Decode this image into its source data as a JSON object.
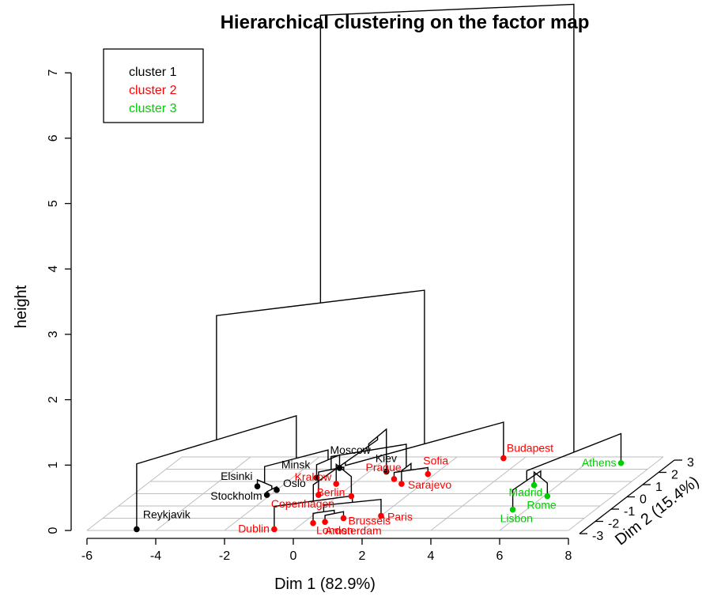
{
  "chart_data": {
    "type": "dendrogram-3d",
    "title": "Hierarchical clustering on the factor map",
    "xlabel": "Dim 1 (82.9%)",
    "ylabel": "Dim 2 (15.4%)",
    "zlabel": "height",
    "xlim": [
      -6,
      8
    ],
    "ylim": [
      -3,
      3
    ],
    "zlim": [
      0,
      7
    ],
    "x_ticks": [
      "-6",
      "-4",
      "-2",
      "0",
      "2",
      "4",
      "6",
      "8"
    ],
    "y_ticks": [
      "-3",
      "-2",
      "-1",
      "0",
      "1",
      "2",
      "3"
    ],
    "z_ticks": [
      "0",
      "1",
      "2",
      "3",
      "4",
      "5",
      "6",
      "7"
    ],
    "legend_position": "top-left",
    "clusters": [
      {
        "name": "cluster 1",
        "color": "#000000"
      },
      {
        "name": "cluster 2",
        "color": "#ff0000"
      },
      {
        "name": "cluster 3",
        "color": "#00cd00"
      }
    ],
    "points": [
      {
        "label": "Reykjavik",
        "dim1": -4.6,
        "dim2": -2.9,
        "cluster": 1
      },
      {
        "label": "Stockholm",
        "dim1": -2.1,
        "dim2": -0.1,
        "cluster": 1
      },
      {
        "label": "Oslo",
        "dim1": -2.0,
        "dim2": 0.3,
        "cluster": 1
      },
      {
        "label": "Elsinki",
        "dim1": -2.7,
        "dim2": 0.6,
        "cluster": 1
      },
      {
        "label": "Minsk",
        "dim1": -1.3,
        "dim2": 1.3,
        "cluster": 1
      },
      {
        "label": "Moscow",
        "dim1": -1.0,
        "dim2": 2.1,
        "cluster": 1
      },
      {
        "label": "Kiev",
        "dim1": 0.5,
        "dim2": 1.8,
        "cluster": 1
      },
      {
        "label": "Krakow",
        "dim1": -0.5,
        "dim2": 0.8,
        "cluster": 2
      },
      {
        "label": "Prague",
        "dim1": 1.0,
        "dim2": 1.2,
        "cluster": 2
      },
      {
        "label": "Sofia",
        "dim1": 1.8,
        "dim2": 1.6,
        "cluster": 2
      },
      {
        "label": "Sarajevo",
        "dim1": 1.4,
        "dim2": 0.8,
        "cluster": 2
      },
      {
        "label": "Berlin",
        "dim1": 0.4,
        "dim2": -0.2,
        "cluster": 2
      },
      {
        "label": "Copenhagen",
        "dim1": -0.6,
        "dim2": -0.1,
        "cluster": 2
      },
      {
        "label": "Budapest",
        "dim1": 3.4,
        "dim2": 2.9,
        "cluster": 2
      },
      {
        "label": "Paris",
        "dim1": 2.0,
        "dim2": -1.8,
        "cluster": 2
      },
      {
        "label": "Brussels",
        "dim1": 1.0,
        "dim2": -2.0,
        "cluster": 2
      },
      {
        "label": "Amsterdam",
        "dim1": 0.6,
        "dim2": -2.3,
        "cluster": 2
      },
      {
        "label": "London",
        "dim1": 0.3,
        "dim2": -2.4,
        "cluster": 2
      },
      {
        "label": "Dublin",
        "dim1": -0.6,
        "dim2": -2.9,
        "cluster": 2
      },
      {
        "label": "Madrid",
        "dim1": 5.3,
        "dim2": 0.7,
        "cluster": 3
      },
      {
        "label": "Rome",
        "dim1": 6.1,
        "dim2": -0.2,
        "cluster": 3
      },
      {
        "label": "Lisbon",
        "dim1": 5.6,
        "dim2": -1.3,
        "cluster": 3
      },
      {
        "label": "Athens",
        "dim1": 7.0,
        "dim2": 2.5,
        "cluster": 3
      }
    ]
  }
}
